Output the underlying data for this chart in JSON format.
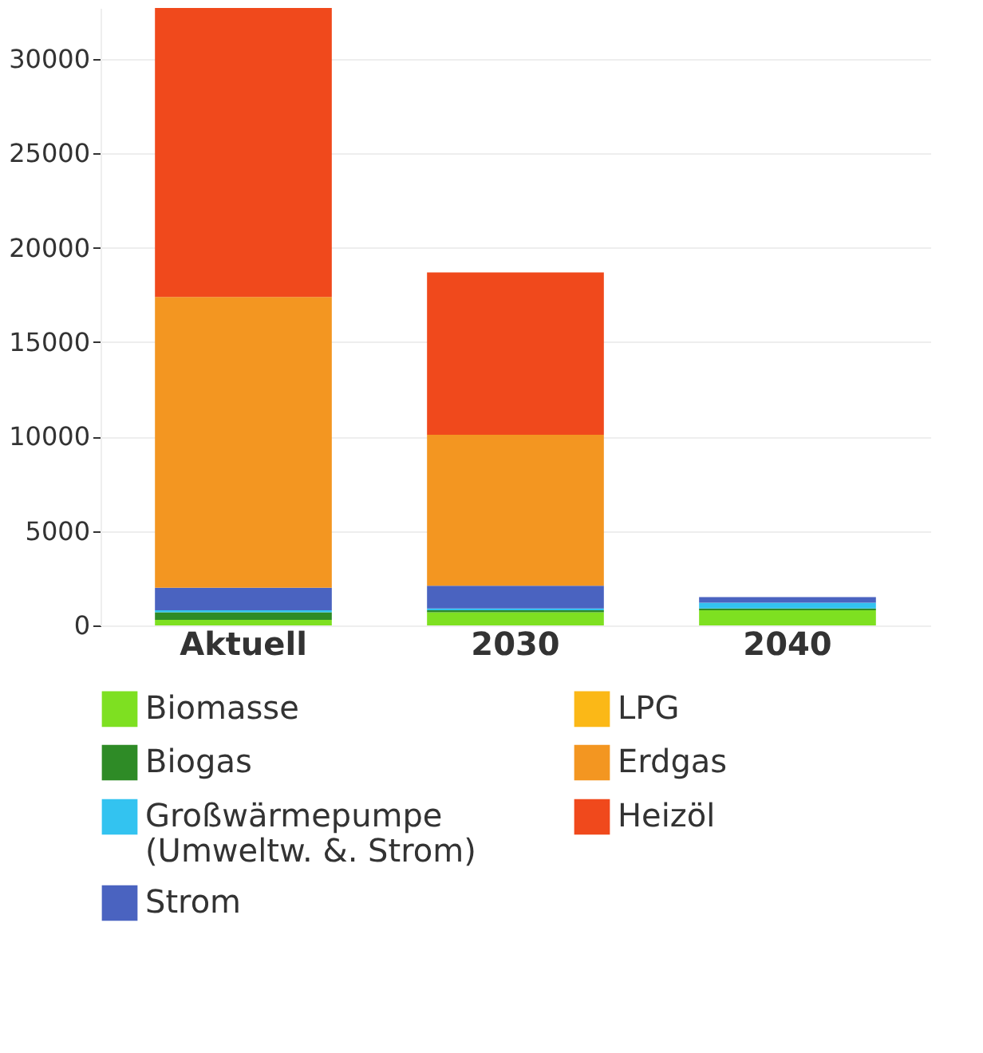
{
  "chart_data": {
    "type": "bar",
    "stacked": true,
    "categories": [
      "Aktuell",
      "2030",
      "2040"
    ],
    "series": [
      {
        "name": "Biomasse",
        "color": "#7ee021",
        "values": [
          300,
          700,
          800
        ]
      },
      {
        "name": "Biogas",
        "color": "#2e8b26",
        "values": [
          400,
          100,
          100
        ]
      },
      {
        "name": "Großwärmepumpe\n(Umweltw. &. Strom)",
        "color": "#33c3f0",
        "values": [
          100,
          100,
          300
        ]
      },
      {
        "name": "Strom",
        "color": "#4a63c0",
        "values": [
          1200,
          1200,
          300
        ]
      },
      {
        "name": "LPG",
        "color": "#fbb817",
        "values": [
          0,
          0,
          0
        ]
      },
      {
        "name": "Erdgas",
        "color": "#f39621",
        "values": [
          15400,
          8000,
          0
        ]
      },
      {
        "name": "Heizöl",
        "color": "#f0491c",
        "values": [
          15300,
          8600,
          0
        ]
      }
    ],
    "ylim": [
      0,
      32700
    ],
    "yticks": [
      0,
      5000,
      10000,
      15000,
      20000,
      25000,
      30000
    ],
    "grid": "y",
    "legend": "bottom"
  }
}
